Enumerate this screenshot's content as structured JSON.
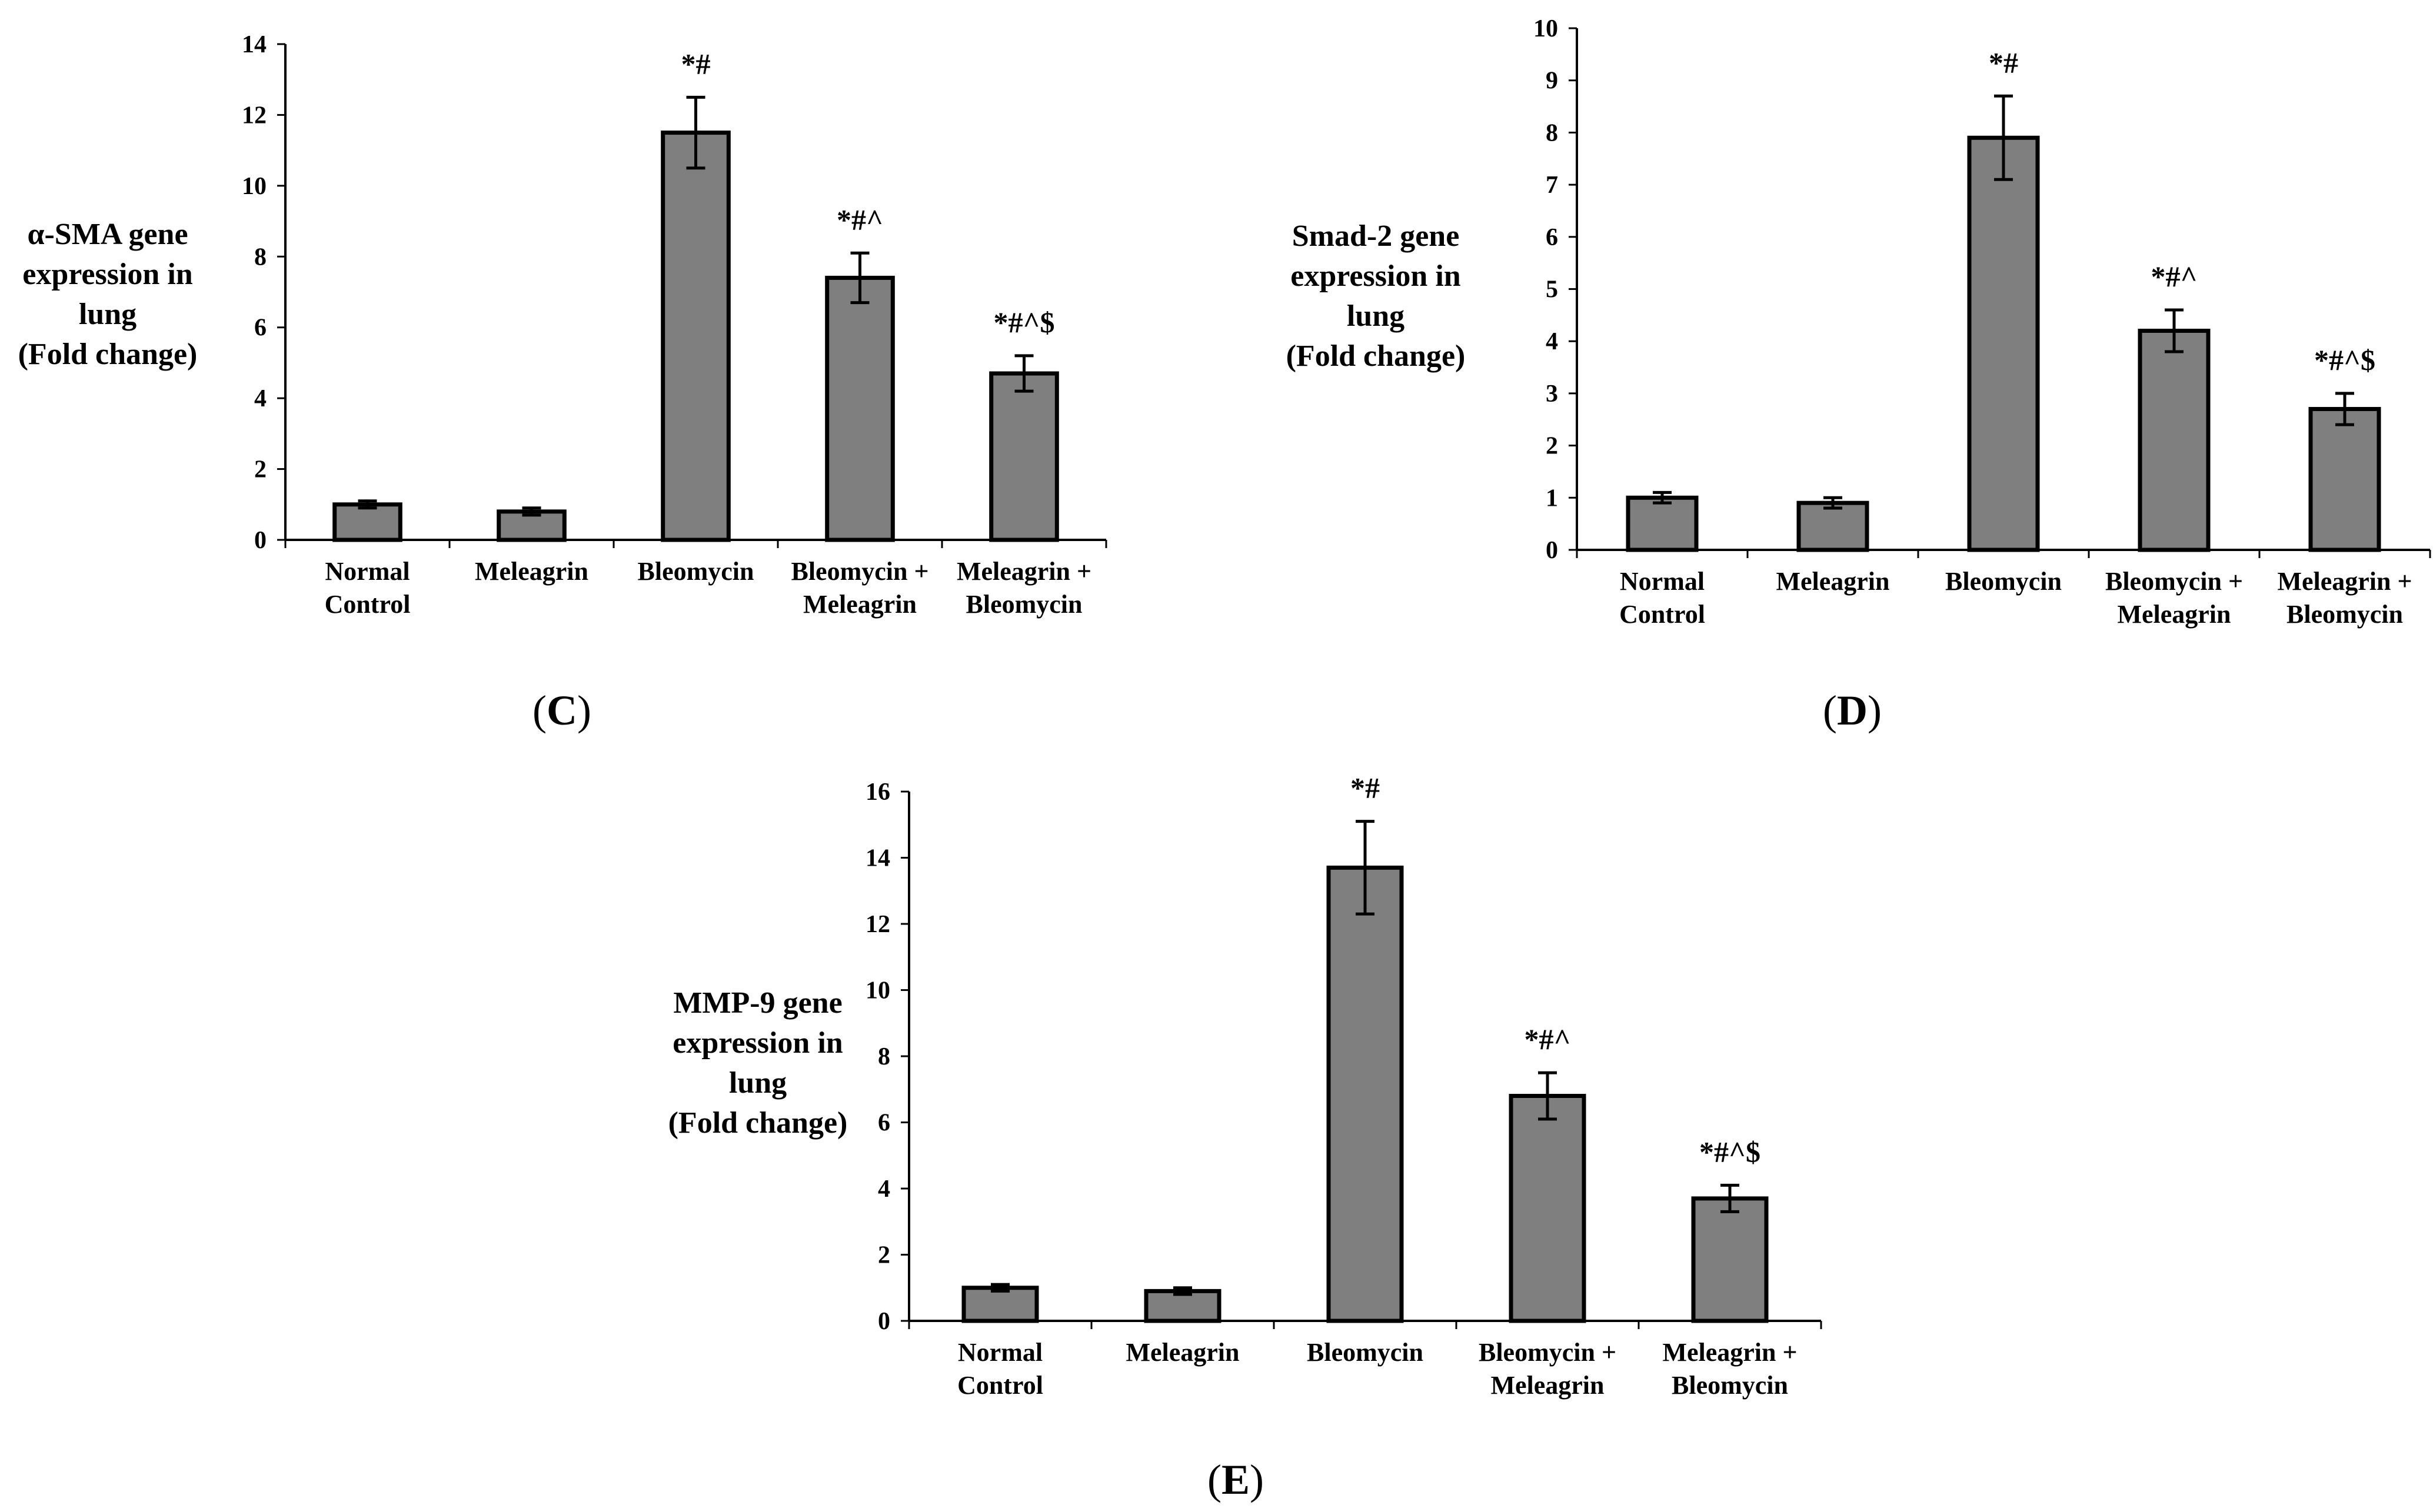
{
  "chart_data": [
    {
      "id": "C",
      "type": "bar",
      "panel_label": "C",
      "ylabel_lines": [
        "α-SMA gene",
        "expression in",
        "lung",
        "(Fold change)"
      ],
      "categories": [
        [
          "Normal",
          "Control"
        ],
        [
          "Meleagrin"
        ],
        [
          "Bleomycin"
        ],
        [
          "Bleomycin +",
          "Meleagrin"
        ],
        [
          "Meleagrin +",
          "Bleomycin"
        ]
      ],
      "values": [
        1.0,
        0.8,
        11.5,
        7.4,
        4.7
      ],
      "errors": [
        0.1,
        0.1,
        1.0,
        0.7,
        0.5
      ],
      "annotations": [
        "",
        "",
        "*#",
        "*#^",
        "*#^$"
      ],
      "ylim": [
        0,
        14
      ],
      "yticks": [
        0,
        2,
        4,
        6,
        8,
        10,
        12,
        14
      ]
    },
    {
      "id": "D",
      "type": "bar",
      "panel_label": "D",
      "ylabel_lines": [
        "Smad-2 gene",
        "expression in",
        "lung",
        "(Fold change)"
      ],
      "categories": [
        [
          "Normal",
          "Control"
        ],
        [
          "Meleagrin"
        ],
        [
          "Bleomycin"
        ],
        [
          "Bleomycin +",
          "Meleagrin"
        ],
        [
          "Meleagrin +",
          "Bleomycin"
        ]
      ],
      "values": [
        1.0,
        0.9,
        7.9,
        4.2,
        2.7
      ],
      "errors": [
        0.1,
        0.1,
        0.8,
        0.4,
        0.3
      ],
      "annotations": [
        "",
        "",
        "*#",
        "*#^",
        "*#^$"
      ],
      "ylim": [
        0,
        10
      ],
      "yticks": [
        0,
        1,
        2,
        3,
        4,
        5,
        6,
        7,
        8,
        9,
        10
      ]
    },
    {
      "id": "E",
      "type": "bar",
      "panel_label": "E",
      "ylabel_lines": [
        "MMP-9 gene",
        "expression in",
        "lung",
        "(Fold change)"
      ],
      "categories": [
        [
          "Normal",
          "Control"
        ],
        [
          "Meleagrin"
        ],
        [
          "Bleomycin"
        ],
        [
          "Bleomycin +",
          "Meleagrin"
        ],
        [
          "Meleagrin +",
          "Bleomycin"
        ]
      ],
      "values": [
        1.0,
        0.9,
        13.7,
        6.8,
        3.7
      ],
      "errors": [
        0.1,
        0.1,
        1.4,
        0.7,
        0.4
      ],
      "annotations": [
        "",
        "",
        "*#",
        "*#^",
        "*#^$"
      ],
      "ylim": [
        0,
        16
      ],
      "yticks": [
        0,
        2,
        4,
        6,
        8,
        10,
        12,
        14,
        16
      ]
    }
  ]
}
